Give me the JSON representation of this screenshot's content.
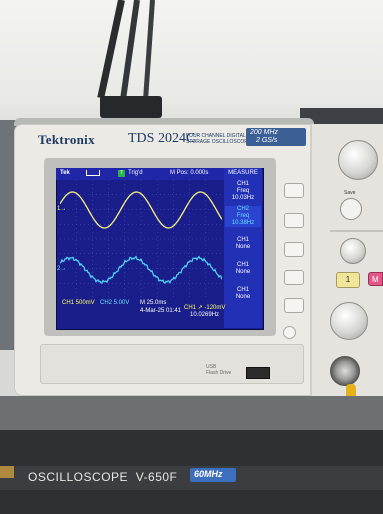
{
  "scope": {
    "brand": "Tektronix",
    "model": "TDS 2024C",
    "model_sub": "FOUR CHANNEL DIGITAL STORAGE OSCILLOSCOPE",
    "spec_bandwidth": "200 MHz",
    "spec_rate": "2 GS/s"
  },
  "screen": {
    "tek": "Tek",
    "trig_state": "Trig'd",
    "m_pos": "M Pos: 0.000s",
    "measure_title": "MEASURE",
    "ch1_scale": "CH1  500mV",
    "ch2_scale": "CH2  5.00V",
    "timebase": "M 25.0ms",
    "date": "4-Mar-25 01:41",
    "trigger": "CH1 ↗ -120mV",
    "trig_freq": "10.0269Hz",
    "ch1_marker": "1→",
    "ch2_marker": "2→",
    "measurements": [
      {
        "ch": "CH1",
        "label": "Freq",
        "value": "10.03Hz",
        "color": "#ffffff"
      },
      {
        "ch": "CH2",
        "label": "Freq",
        "value": "10.38Hz",
        "color": "#66e0ff"
      },
      {
        "ch": "CH1",
        "label": "None",
        "value": "",
        "color": "#ffffff"
      },
      {
        "ch": "CH1",
        "label": "None",
        "value": "",
        "color": "#ffffff"
      },
      {
        "ch": "CH1",
        "label": "None",
        "value": "",
        "color": "#ffffff"
      }
    ]
  },
  "panel": {
    "save_label": "Save",
    "ch1_button": "1",
    "ch2_button": "M",
    "usb_label": "USB\nFlash Drive"
  },
  "lower": {
    "label": "OSCILLOSCOPE  V-650F",
    "mhz": "60MHz"
  },
  "colors": {
    "screen_bg": "#1a1e8a",
    "ch1_trace": "#f6f27a",
    "ch2_trace": "#4fd8ff",
    "brand_blue": "#1e3a63",
    "cable": "#e6b21c"
  }
}
